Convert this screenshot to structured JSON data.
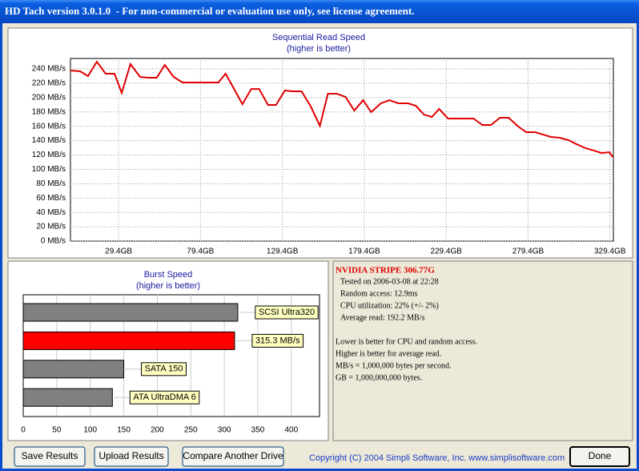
{
  "window": {
    "title": "HD Tach version 3.0.1.0  - For non-commercial or evaluation use only, see license agreement."
  },
  "chart_data": [
    {
      "type": "line",
      "title": "Sequential Read Speed",
      "subtitle": "(higher is better)",
      "x": [
        0,
        5.9,
        10.7,
        16.1,
        21.5,
        26.9,
        31.3,
        36.6,
        42.5,
        47.4,
        52.7,
        57.6,
        63.0,
        68.4,
        74.2,
        79.6,
        85.0,
        90.3,
        94.7,
        99.6,
        105.0,
        110.4,
        115.2,
        120.6,
        125.5,
        130.9,
        135.7,
        141.1,
        146.5,
        152.3,
        157.2,
        162.6,
        168.0,
        173.3,
        178.7,
        183.6,
        189.5,
        194.8,
        200.2,
        206.1,
        210.9,
        215.8,
        220.7,
        225.1,
        230.5,
        235.4,
        240.7,
        246.1,
        251.5,
        256.8,
        262.2,
        267.6,
        273.4,
        278.3,
        283.7,
        288.6,
        293.5,
        298.8,
        304.2,
        309.1,
        314.5,
        319.8,
        324.2,
        329.1,
        331.1
      ],
      "series": [
        {
          "color": "#e00000",
          "values": [
            237.7,
            236.6,
            229.9,
            250,
            233.3,
            233.3,
            206.5,
            246.7,
            228.8,
            227.7,
            227.7,
            245.5,
            228.8,
            221,
            221,
            221,
            221,
            221,
            233.3,
            213.2,
            190.8,
            212,
            212,
            189.7,
            189.7,
            209.8,
            208.7,
            208.7,
            188.6,
            160.7,
            205.4,
            205.4,
            200.9,
            181.9,
            196.4,
            179.7,
            192,
            196.4,
            192,
            192,
            188.6,
            176.3,
            173,
            184.2,
            170.8,
            170.8,
            170.8,
            170.8,
            161.8,
            161.8,
            171.9,
            171.9,
            159.6,
            151.8,
            151.8,
            148.4,
            145.1,
            144,
            140.6,
            135,
            129.5,
            126.1,
            122.8,
            123.9,
            117.2
          ]
        }
      ],
      "xlim": [
        0,
        331.5
      ],
      "ylim": [
        0,
        254.5
      ],
      "xticks": [
        {
          "value": 29.4,
          "label": "29.4GB"
        },
        {
          "value": 79.4,
          "label": "79.4GB"
        },
        {
          "value": 129.4,
          "label": "129.4GB"
        },
        {
          "value": 179.4,
          "label": "179.4GB"
        },
        {
          "value": 229.4,
          "label": "229.4GB"
        },
        {
          "value": 279.4,
          "label": "279.4GB"
        },
        {
          "value": 329.4,
          "label": "329.4GB"
        }
      ],
      "yticks": [
        {
          "value": 0,
          "label": "0 MB/s"
        },
        {
          "value": 20,
          "label": "20 MB/s"
        },
        {
          "value": 40,
          "label": "40 MB/s"
        },
        {
          "value": 60,
          "label": "60 MB/s"
        },
        {
          "value": 80,
          "label": "80 MB/s"
        },
        {
          "value": 100,
          "label": "100 MB/s"
        },
        {
          "value": 120,
          "label": "120 MB/s"
        },
        {
          "value": 140,
          "label": "140 MB/s"
        },
        {
          "value": 160,
          "label": "160 MB/s"
        },
        {
          "value": 180,
          "label": "180 MB/s"
        },
        {
          "value": 200,
          "label": "200 MB/s"
        },
        {
          "value": 220,
          "label": "220 MB/s"
        },
        {
          "value": 240,
          "label": "240 MB/s"
        }
      ],
      "grid": true
    },
    {
      "type": "bar",
      "orientation": "horizontal",
      "title": "Burst Speed",
      "subtitle": "(higher is better)",
      "categories": [
        "SCSI Ultra320",
        null,
        "SATA 150",
        "ATA UltraDMA 6"
      ],
      "values": [
        320,
        315.3,
        150,
        133
      ],
      "value_labels": [
        null,
        "315.3 MB/s",
        null,
        null
      ],
      "colors": [
        "#808080",
        "#ff0000",
        "#808080",
        "#808080"
      ],
      "xlim": [
        0,
        442
      ],
      "xticks": [
        0,
        50,
        100,
        150,
        200,
        250,
        300,
        350,
        400
      ],
      "grid": true
    }
  ],
  "info": {
    "title": "NVIDIA STRIPE 306.77G",
    "lines": [
      "Tested on 2006-03-08 at 22:28",
      "Random access: 12.9ms",
      "CPU utilization: 22% (+/- 2%)",
      "Average read: 192.2 MB/s"
    ],
    "notes": [
      "Lower is better for CPU and random access.",
      "Higher is better for average read.",
      "MB/s = 1,000,000 bytes per second.",
      "GB = 1,000,000,000 bytes."
    ]
  },
  "buttons": [
    "Save Results",
    "Upload Results",
    "Compare Another Drive"
  ],
  "done": "Done",
  "copyright": "Copyright (C) 2004 Simpli Software, Inc. www.simplisoftware.com"
}
